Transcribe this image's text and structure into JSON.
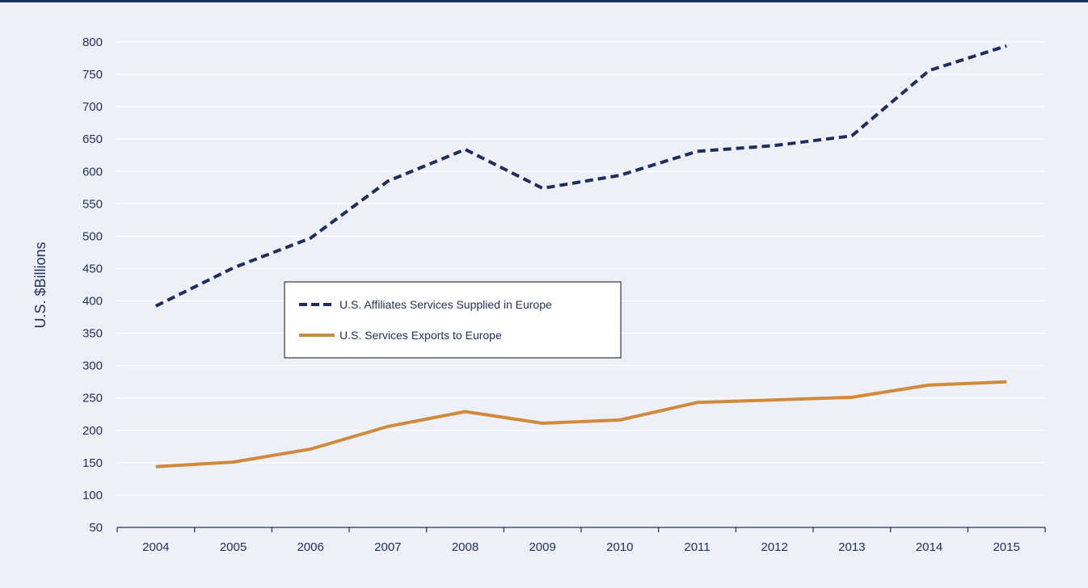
{
  "chart_data": {
    "type": "line",
    "title": "",
    "xlabel": "",
    "ylabel": "U.S. $Billions",
    "categories": [
      "2004",
      "2005",
      "2006",
      "2007",
      "2008",
      "2009",
      "2010",
      "2011",
      "2012",
      "2013",
      "2014",
      "2015"
    ],
    "ylim": [
      50,
      800
    ],
    "yticks": [
      50,
      100,
      150,
      200,
      250,
      300,
      350,
      400,
      450,
      500,
      550,
      600,
      650,
      700,
      750,
      800
    ],
    "grid": true,
    "legend_position": "center",
    "series": [
      {
        "name": "U.S. Affiliates Services Supplied in Europe",
        "style": "dashed",
        "color": "#1f2d5c",
        "values": [
          392,
          451,
          497,
          585,
          634,
          574,
          594,
          631,
          640,
          655,
          756,
          794
        ]
      },
      {
        "name": "U.S. Services Exports to Europe",
        "style": "solid",
        "color": "#d08a3e",
        "values": [
          144,
          151,
          171,
          206,
          229,
          211,
          216,
          243,
          247,
          251,
          270,
          275
        ]
      }
    ]
  },
  "colors": {
    "background": "#eef0f7",
    "plot_background": "#eef0f7",
    "gridline": "#ffffff",
    "axis": "#1f2d5c",
    "text": "#23305f"
  }
}
